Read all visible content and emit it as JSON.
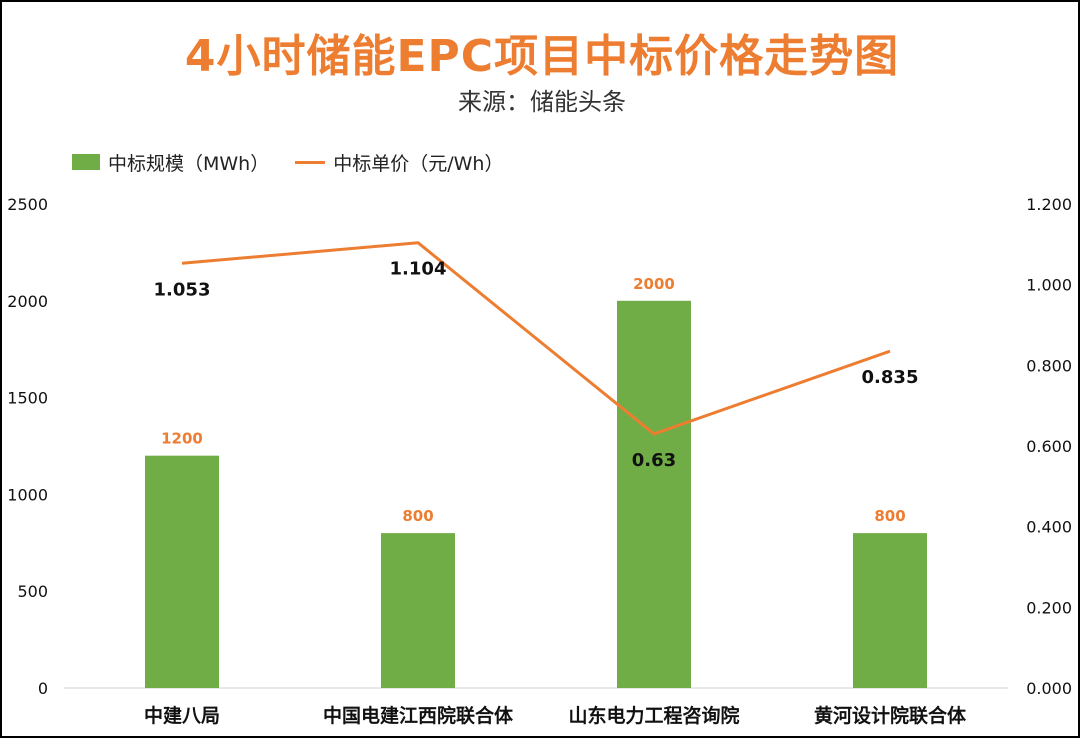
{
  "chart_data": {
    "type": "bar",
    "title": "4小时储能EPC项目中标价格走势图",
    "subtitle": "来源：储能头条",
    "categories": [
      "中建八局",
      "中国电建江西院联合体",
      "山东电力工程咨询院",
      "黄河设计院联合体"
    ],
    "series": [
      {
        "name": "中标规模（MWh）",
        "type": "bar",
        "axis": "left",
        "color": "#70AD47",
        "label_color": "#ED7D31",
        "values": [
          1200,
          800,
          2000,
          800
        ],
        "labels": [
          "1200",
          "800",
          "2000",
          "800"
        ]
      },
      {
        "name": "中标单价（元/Wh）",
        "type": "line",
        "axis": "right",
        "color": "#ED7D31",
        "values": [
          1.053,
          1.104,
          0.63,
          0.835
        ],
        "labels": [
          "1.053",
          "1.104",
          "0.63",
          "0.835"
        ]
      }
    ],
    "y_left": {
      "ylim": [
        0,
        2500
      ],
      "ticks": [
        "0",
        "500",
        "1000",
        "1500",
        "2000",
        "2500"
      ]
    },
    "y_right": {
      "ylim": [
        0,
        1.2
      ],
      "ticks": [
        "0.000",
        "0.200",
        "0.400",
        "0.600",
        "0.800",
        "1.000",
        "1.200"
      ]
    },
    "legend_position": "top-left",
    "grid": false
  }
}
